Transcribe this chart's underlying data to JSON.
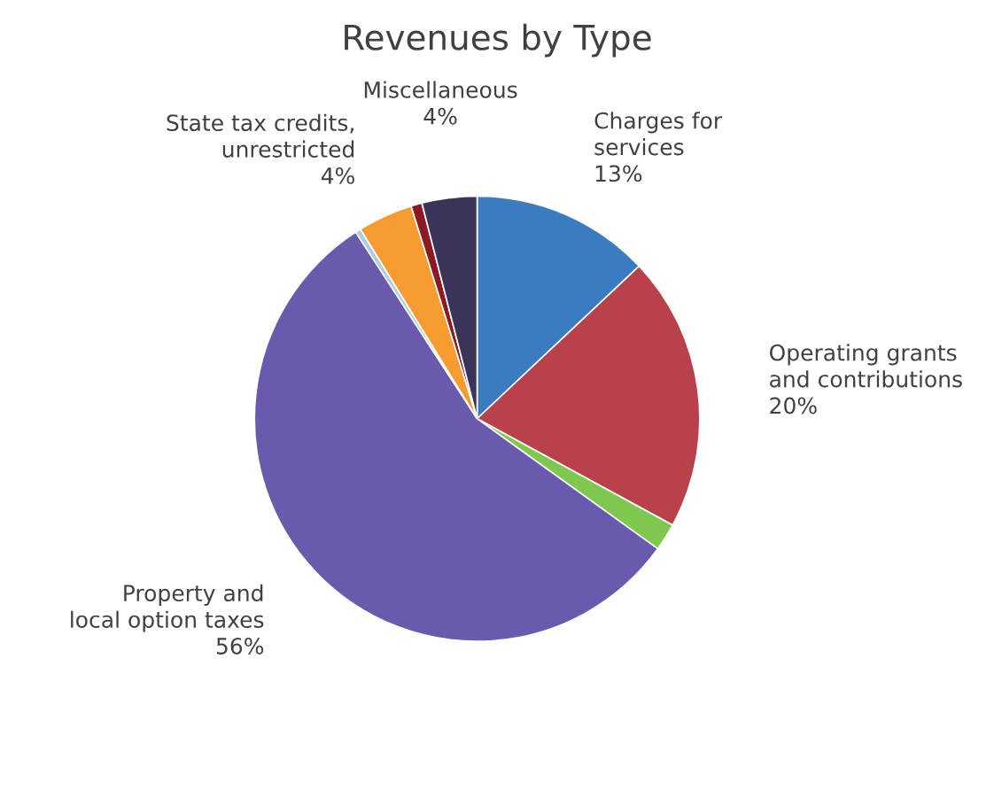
{
  "chart_data": {
    "type": "pie",
    "title": "Revenues by Type",
    "categories": [
      "Charges for\nservices",
      "Operating grants\nand contributions",
      null,
      "Property and\nlocal option taxes",
      null,
      "State tax credits,\nunrestricted",
      null,
      "Miscellaneous"
    ],
    "values": [
      13,
      20,
      2,
      56,
      0.4,
      4,
      0.8,
      4
    ],
    "value_labels": [
      "13%",
      "20%",
      null,
      "56%",
      null,
      "4%",
      null,
      "4%"
    ],
    "colors": [
      "#3b7cc0",
      "#b8414c",
      "#7ec850",
      "#6a5aad",
      "#a9cde8",
      "#f59b2f",
      "#8b1a22",
      "#3b3458"
    ]
  }
}
